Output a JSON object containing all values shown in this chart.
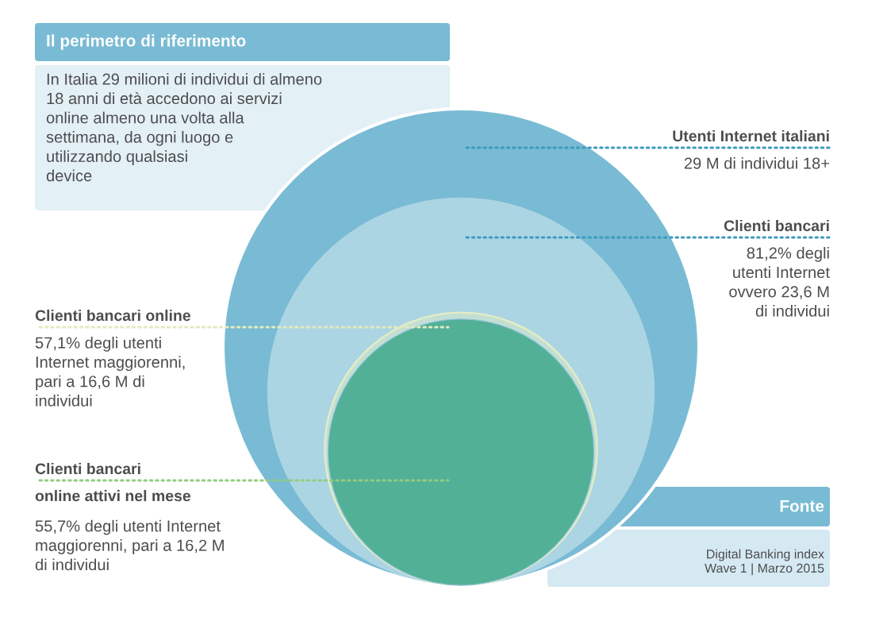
{
  "chart_data": {
    "type": "other",
    "title": "Il perimetro di riferimento",
    "subtitle": "In Italia 29 milioni di individui di almeno\n18 anni di età accedono ai servizi\nonline almeno una volta alla\nsettimana, da ogni luogo e\nutilizzando qualsiasi\ndevice",
    "categories": [
      "Utenti Internet italiani",
      "Clienti bancari",
      "Clienti bancari online",
      "Clienti bancari\nonline attivi nel mese"
    ],
    "values": [
      29,
      23.6,
      16.6,
      16.2
    ],
    "colors": [
      "#79bbd4",
      "#acd5e4",
      "#c3dfd4",
      "#52b097"
    ],
    "value_labels": [
      "29 M di individui 18+",
      "81,2% degli\nutenti Internet\novvero 23,6 M\ndi individui",
      "57,1% degli utenti\nInternet maggiorenni,\npari a 16,6 M di\nindividui",
      "55,7% degli utenti Internet\nmaggiorenni, pari a 16,2 M\ndi individui"
    ],
    "annotations": [
      "Fonte",
      "Digital Banking index\nWave 1 | Marzo 2015"
    ]
  }
}
